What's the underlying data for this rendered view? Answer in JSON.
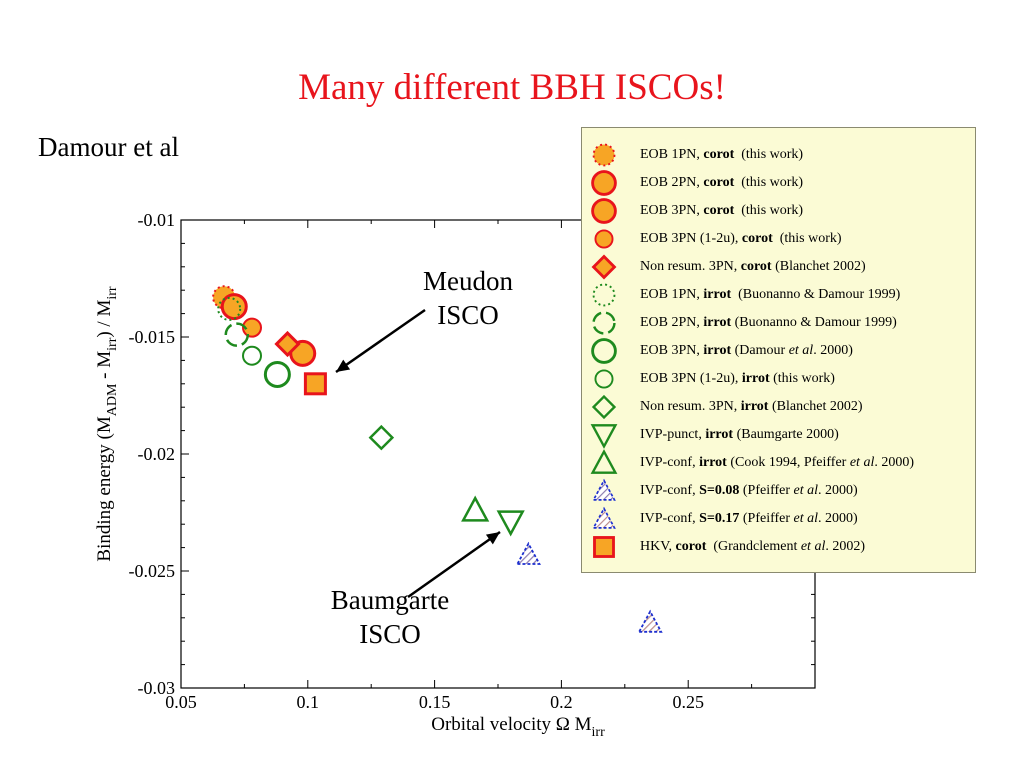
{
  "slide": {
    "title": "Many different BBH ISCOs!",
    "subtitle": "Damour et al"
  },
  "annotations": {
    "meudon_line1": "Meudon",
    "meudon_line2": "ISCO",
    "baumgarte_line1": "Baumgarte",
    "baumgarte_line2": "ISCO"
  },
  "colors": {
    "title": "#e8141c",
    "orange_fill": "#f7a525",
    "red_edge": "#e8141c",
    "green": "#1e8a1e",
    "blue": "#1d2fcf",
    "legend_bg": "#fbfbd5"
  },
  "chart_data": {
    "type": "scatter",
    "xlabel": "Orbital velocity  Ω M",
    "xlabel_sub": "irr",
    "ylabel_pre": "Binding energy  (M",
    "ylabel_sub1": "ADM",
    "ylabel_mid": " - M",
    "ylabel_sub2": "irr",
    "ylabel_mid2": ") / M",
    "ylabel_sub3": "irr",
    "xlim": [
      0.05,
      0.3
    ],
    "ylim": [
      -0.03,
      -0.01
    ],
    "xticks": [
      "0.05",
      "0.1",
      "0.15",
      "0.2",
      "0.25"
    ],
    "yticks": [
      "-0.01",
      "-0.015",
      "-0.02",
      "-0.025",
      "-0.03"
    ],
    "grid": false,
    "legend_position": "top-right",
    "series": [
      {
        "name": "EOB 1PN, corot  (this work)",
        "marker": "circle-dotted-orange",
        "x": [
          0.067
        ],
        "y": [
          -0.0133
        ]
      },
      {
        "name": "EOB 2PN, corot  (this work)",
        "marker": "circle-orange-large",
        "x": [
          0.071
        ],
        "y": [
          -0.0137
        ]
      },
      {
        "name": "EOB 3PN, corot  (this work)",
        "marker": "circle-orange-large",
        "x": [
          0.098
        ],
        "y": [
          -0.0157
        ]
      },
      {
        "name": "EOB 3PN (1-2u),  corot  (this work)",
        "marker": "circle-orange-small",
        "x": [
          0.078
        ],
        "y": [
          -0.0146
        ]
      },
      {
        "name": "Non resum. 3PN, corot (Blanchet 2002)",
        "marker": "diamond-orange",
        "x": [
          0.092
        ],
        "y": [
          -0.0153
        ]
      },
      {
        "name": "EOB 1PN, irrot  (Buonanno & Damour 1999)",
        "marker": "circle-dotted-green",
        "x": [
          0.069
        ],
        "y": [
          -0.0138
        ]
      },
      {
        "name": "EOB 2PN, irrot (Buonanno & Damour 1999)",
        "marker": "circle-dashed-green",
        "x": [
          0.072
        ],
        "y": [
          -0.0149
        ]
      },
      {
        "name": "EOB 3PN, irrot (Damour et al. 2000)",
        "marker": "circle-green-large",
        "x": [
          0.088
        ],
        "y": [
          -0.0166
        ]
      },
      {
        "name": "EOB 3PN (1-2u), irrot (this work)",
        "marker": "circle-green-small",
        "x": [
          0.078
        ],
        "y": [
          -0.0158
        ]
      },
      {
        "name": "Non resum. 3PN, irrot (Blanchet 2002)",
        "marker": "diamond-green",
        "x": [
          0.129
        ],
        "y": [
          -0.0193
        ]
      },
      {
        "name": "IVP-punct, irrot (Baumgarte 2000)",
        "marker": "triangle-down-green",
        "x": [
          0.18
        ],
        "y": [
          -0.0229
        ]
      },
      {
        "name": "IVP-conf, irrot (Cook 1994, Pfeiffer et al. 2000)",
        "marker": "triangle-up-green",
        "x": [
          0.166
        ],
        "y": [
          -0.0224
        ]
      },
      {
        "name": "IVP-conf, S=0.08 (Pfeiffer et al. 2000)",
        "marker": "triangle-hatched-blue",
        "x": [
          0.187
        ],
        "y": [
          -0.0243
        ]
      },
      {
        "name": "IVP-conf, S=0.17 (Pfeiffer et al. 2000)",
        "marker": "triangle-hatched-purple",
        "x": [
          0.235
        ],
        "y": [
          -0.0272
        ]
      },
      {
        "name": "HKV, corot  (Grandclement et al. 2002)",
        "marker": "square-orange",
        "x": [
          0.103
        ],
        "y": [
          -0.017
        ]
      }
    ]
  },
  "legend": {
    "items": [
      {
        "marker": "circle-dotted-orange",
        "pre": "EOB 1PN, ",
        "bold": "corot",
        "post": "  (this work)",
        "italic": ""
      },
      {
        "marker": "circle-orange-large",
        "pre": "EOB 2PN, ",
        "bold": "corot",
        "post": "  (this work)",
        "italic": ""
      },
      {
        "marker": "circle-orange-large",
        "pre": "EOB 3PN, ",
        "bold": "corot",
        "post": "  (this work)",
        "italic": ""
      },
      {
        "marker": "circle-orange-small",
        "pre": "EOB 3PN (1-2u),  ",
        "bold": "corot",
        "post": "  (this work)",
        "italic": ""
      },
      {
        "marker": "diamond-orange",
        "pre": "Non resum. 3PN, ",
        "bold": "corot",
        "post": " (Blanchet 2002)",
        "italic": ""
      },
      {
        "marker": "circle-dotted-green",
        "pre": "EOB 1PN, ",
        "bold": "irrot",
        "post": "  (Buonanno & Damour 1999)",
        "italic": ""
      },
      {
        "marker": "circle-dashed-green",
        "pre": "EOB 2PN, ",
        "bold": "irrot",
        "post": " (Buonanno & Damour 1999)",
        "italic": ""
      },
      {
        "marker": "circle-green-large",
        "pre": "EOB 3PN, ",
        "bold": "irrot",
        "post": " (Damour ",
        "italic": "et al",
        "post2": ". 2000)"
      },
      {
        "marker": "circle-green-small",
        "pre": "EOB 3PN (1-2u), ",
        "bold": "irrot",
        "post": " (this work)",
        "italic": ""
      },
      {
        "marker": "diamond-green",
        "pre": "Non resum. 3PN, ",
        "bold": "irrot",
        "post": " (Blanchet 2002)",
        "italic": ""
      },
      {
        "marker": "triangle-down-green",
        "pre": "IVP-punct, ",
        "bold": "irrot",
        "post": " (Baumgarte 2000)",
        "italic": ""
      },
      {
        "marker": "triangle-up-green",
        "pre": "IVP-conf, ",
        "bold": "irrot",
        "post": " (Cook 1994, Pfeiffer ",
        "italic": "et al",
        "post2": ". 2000)"
      },
      {
        "marker": "triangle-hatched-blue",
        "pre": "IVP-conf, ",
        "bold": "S=0.08",
        "post": " (Pfeiffer ",
        "italic": "et al",
        "post2": ". 2000)"
      },
      {
        "marker": "triangle-hatched-purple",
        "pre": "IVP-conf, ",
        "bold": "S=0.17",
        "post": " (Pfeiffer ",
        "italic": "et al",
        "post2": ". 2000)"
      },
      {
        "marker": "square-orange",
        "pre": "HKV, ",
        "bold": "corot",
        "post": "  (Grandclement ",
        "italic": "et al",
        "post2": ". 2002)"
      }
    ]
  }
}
